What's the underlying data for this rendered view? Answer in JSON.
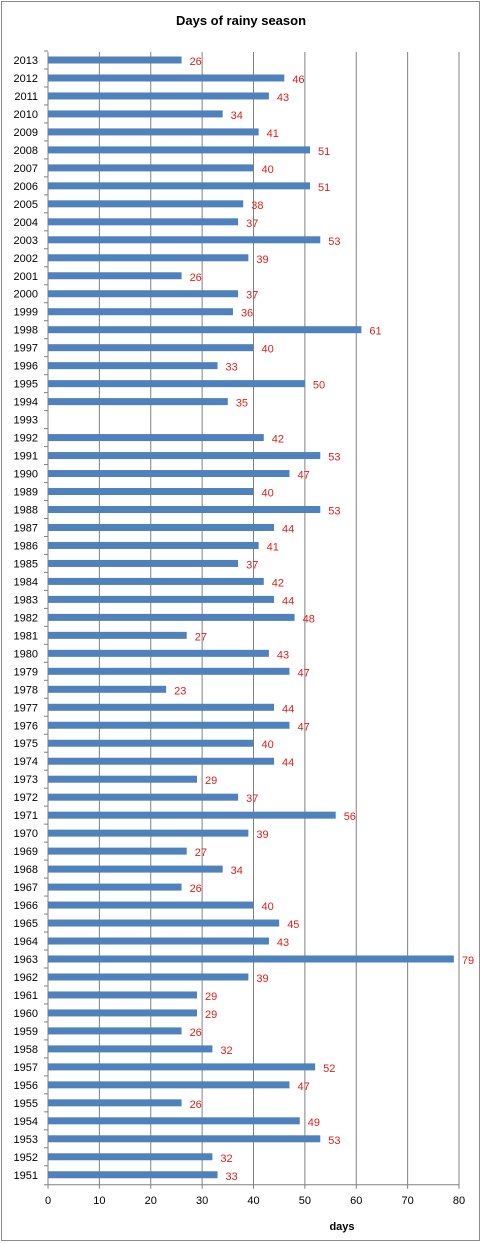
{
  "chart_data": {
    "type": "bar",
    "orientation": "horizontal",
    "title": "Days of rainy season",
    "xlabel": "days",
    "ylabel": "",
    "xlim": [
      0,
      80
    ],
    "xticks": [
      0,
      10,
      20,
      30,
      40,
      50,
      60,
      70,
      80
    ],
    "grid": "vertical",
    "legend": "none",
    "bar_color": "#4f81bd",
    "label_color": "#e0201b",
    "categories": [
      "2013",
      "2012",
      "2011",
      "2010",
      "2009",
      "2008",
      "2007",
      "2006",
      "2005",
      "2004",
      "2003",
      "2002",
      "2001",
      "2000",
      "1999",
      "1998",
      "1997",
      "1996",
      "1995",
      "1994",
      "1993",
      "1992",
      "1991",
      "1990",
      "1989",
      "1988",
      "1987",
      "1986",
      "1985",
      "1984",
      "1983",
      "1982",
      "1981",
      "1980",
      "1979",
      "1978",
      "1977",
      "1976",
      "1975",
      "1974",
      "1973",
      "1972",
      "1971",
      "1970",
      "1969",
      "1968",
      "1967",
      "1966",
      "1965",
      "1964",
      "1963",
      "1962",
      "1961",
      "1960",
      "1959",
      "1958",
      "1957",
      "1956",
      "1955",
      "1954",
      "1953",
      "1952",
      "1951"
    ],
    "values": [
      26,
      46,
      43,
      34,
      41,
      51,
      40,
      51,
      38,
      37,
      53,
      39,
      26,
      37,
      36,
      61,
      40,
      33,
      50,
      35,
      null,
      42,
      53,
      47,
      40,
      53,
      44,
      41,
      37,
      42,
      44,
      48,
      27,
      43,
      47,
      23,
      44,
      47,
      40,
      44,
      29,
      37,
      56,
      39,
      27,
      34,
      26,
      40,
      45,
      43,
      79,
      39,
      29,
      29,
      26,
      32,
      52,
      47,
      26,
      49,
      53,
      32,
      33
    ]
  }
}
